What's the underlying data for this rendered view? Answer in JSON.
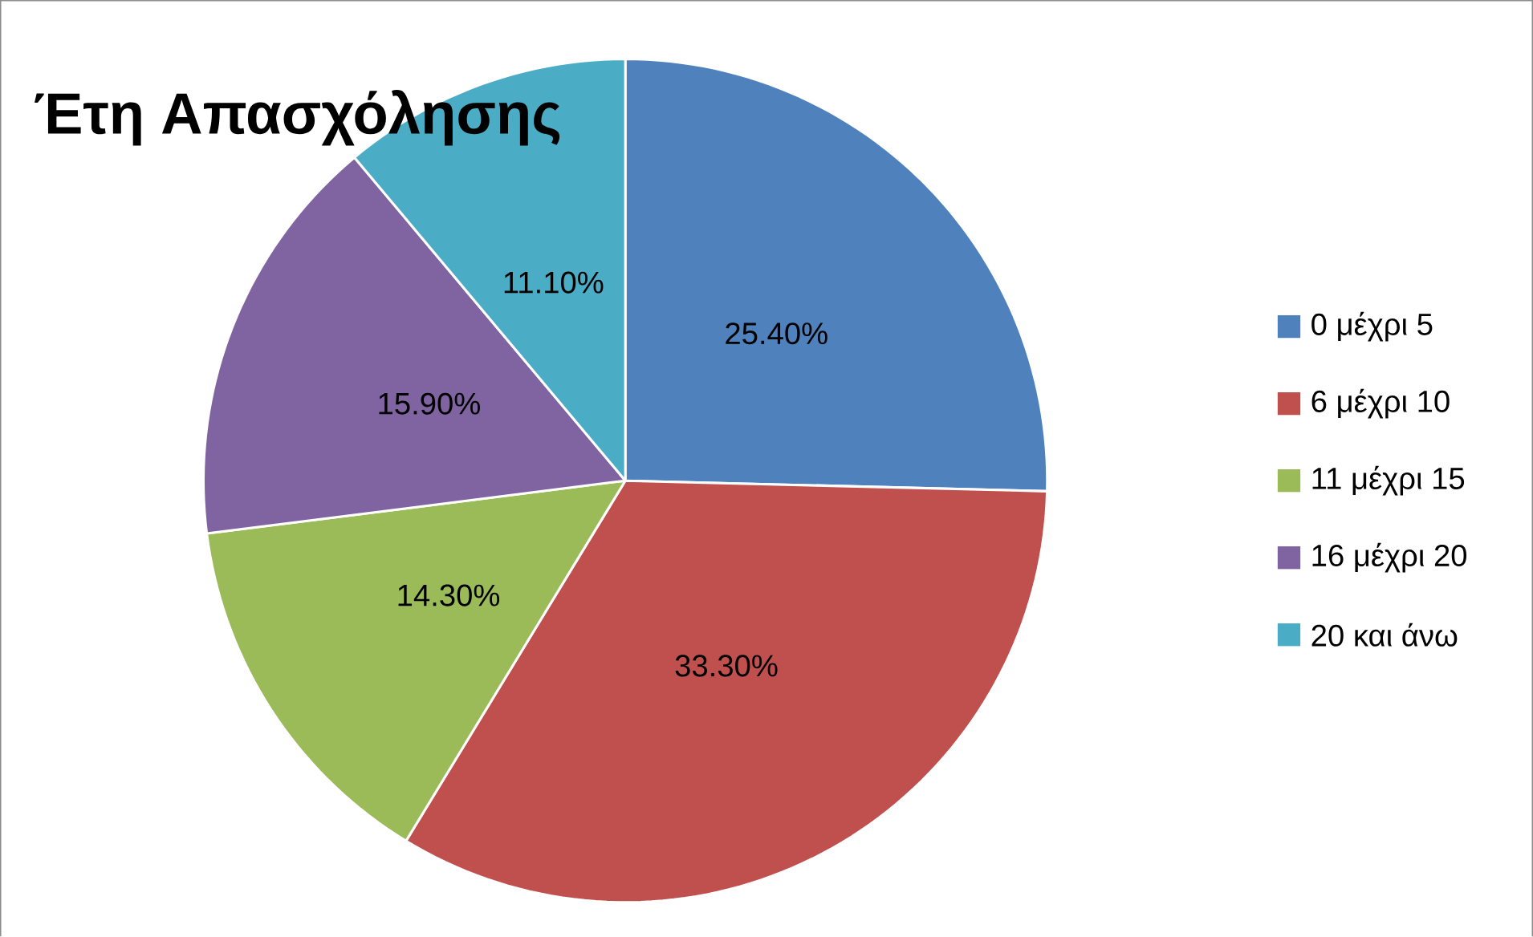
{
  "chart_data": {
    "type": "pie",
    "title": "Έτη Απασχόλησης",
    "categories": [
      "0 μέχρι 5",
      "6 μέχρι 10",
      "11 μέχρι 15",
      "16 μέχρι 20",
      "20 και άνω"
    ],
    "values": [
      25.4,
      33.3,
      14.3,
      15.9,
      11.1
    ],
    "value_labels": [
      "25.40%",
      "33.30%",
      "14.30%",
      "15.90%",
      "11.10%"
    ],
    "colors": [
      "#4f81bd",
      "#c0504d",
      "#9bbb59",
      "#8064a2",
      "#4bacc6"
    ],
    "legend": "right"
  }
}
